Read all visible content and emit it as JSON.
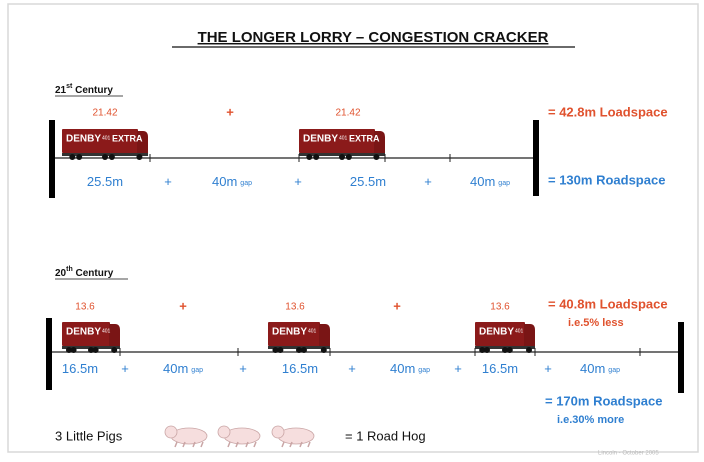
{
  "title": "THE LONGER LORRY – CONGESTION CRACKER",
  "truck_labels": {
    "brand": "DENBY",
    "number": "401",
    "extra": "EXTRA"
  },
  "sections": [
    {
      "heading": {
        "pre": "21",
        "sup": "st",
        "post": " Century"
      },
      "loads": [
        "21.42",
        "+",
        "21.42"
      ],
      "segments": [
        {
          "text": "25.5m"
        },
        {
          "text": "+"
        },
        {
          "text": "40m",
          "sub": "gap"
        },
        {
          "text": "+"
        },
        {
          "text": "25.5m"
        },
        {
          "text": "+"
        },
        {
          "text": "40m",
          "sub": "gap"
        }
      ],
      "loadspace": "= 42.8m Loadspace",
      "roadspace": "= 130m Roadspace"
    },
    {
      "heading": {
        "pre": "20",
        "sup": "th",
        "post": " Century"
      },
      "loads": [
        "13.6",
        "+",
        "13.6",
        "+",
        "13.6"
      ],
      "segments": [
        {
          "text": "16.5m"
        },
        {
          "text": "+"
        },
        {
          "text": "40m",
          "sub": "gap"
        },
        {
          "text": "+"
        },
        {
          "text": "16.5m"
        },
        {
          "text": "+"
        },
        {
          "text": "40m",
          "sub": "gap"
        },
        {
          "text": "+"
        },
        {
          "text": "16.5m"
        },
        {
          "text": "+"
        },
        {
          "text": "40m",
          "sub": "gap"
        }
      ],
      "loadspace": "= 40.8m Loadspace",
      "loadspace_note": "i.e.5% less",
      "roadspace": "= 170m Roadspace",
      "roadspace_note": "i.e.30% more"
    }
  ],
  "footer": {
    "left": "3 Little Pigs",
    "right": "= 1 Road Hog",
    "credit": "Lincoln - October 2005"
  }
}
